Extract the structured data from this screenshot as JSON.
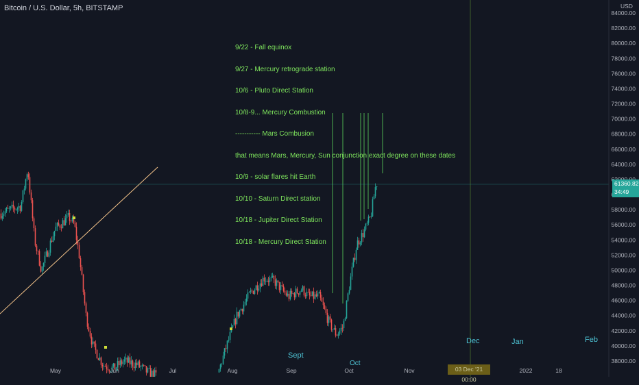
{
  "header": {
    "title": "Bitcoin / U.S. Dollar, 5h, BITSTAMP"
  },
  "price_axis": {
    "currency": "USD",
    "labels": [
      "84000.00",
      "82000.00",
      "80000.00",
      "78000.00",
      "76000.00",
      "74000.00",
      "72000.00",
      "70000.00",
      "68000.00",
      "66000.00",
      "64000.00",
      "62000.00",
      "60000.00",
      "58000.00",
      "56000.00",
      "54000.00",
      "52000.00",
      "50000.00",
      "48000.00",
      "46000.00",
      "44000.00",
      "42000.00",
      "40000.00",
      "38000.00"
    ],
    "values": [
      84000,
      82000,
      80000,
      78000,
      76000,
      74000,
      72000,
      70000,
      68000,
      66000,
      64000,
      62000,
      60000,
      58000,
      56000,
      54000,
      52000,
      50000,
      48000,
      46000,
      44000,
      42000,
      40000,
      38000
    ],
    "last_price": "61360.82",
    "countdown": "34:49"
  },
  "time_axis": {
    "labels": [
      "May",
      "Jun",
      "Jul",
      "Aug",
      "Sep",
      "Oct",
      "Nov",
      "Dec",
      "2022",
      "18"
    ],
    "crosshair_label": "03 Dec '21   00:00"
  },
  "annotations": {
    "lines": [
      "9/22 - Fall equinox",
      "9/27 - Mercury retrograde station",
      "10/6 - Pluto Direct Station",
      "10/8-9... Mercury Combustion",
      "----------- Mars Combusion",
      "that means Mars, Mercury, Sun conjunction exact degree on these dates",
      "10/9 - solar flares hit Earth",
      "10/10 - Saturn Direct station",
      "10/18 - Jupiter Direct Station",
      "10/18 - Mercury Direct Station"
    ],
    "month_overlays": [
      "Dec",
      "Jan",
      "Feb",
      "Sept",
      "Oct"
    ]
  },
  "colors": {
    "background": "#131722",
    "up": "#26a69a",
    "down": "#ef5350",
    "annotation_text": "#7fe65d",
    "vertical_lines": "#4caf50",
    "trendline": "#f5c48a",
    "overlay_text": "#4ec3d4"
  }
}
